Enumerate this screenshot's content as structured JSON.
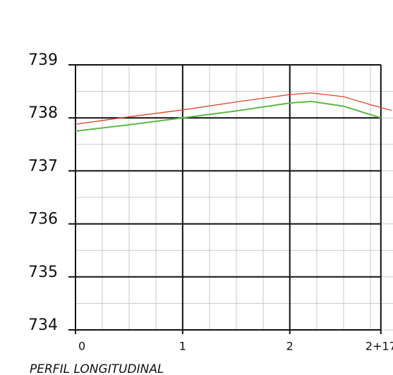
{
  "chart_data": {
    "type": "line",
    "title": "PERFIL LONGITUDINAL",
    "xlim": [
      0,
      2.95
    ],
    "xticks": [
      0,
      1,
      2,
      {
        "value": 2.85,
        "label": "2+17"
      }
    ],
    "ylim": [
      734,
      739
    ],
    "yticks": [
      734,
      735,
      736,
      737,
      738,
      739
    ],
    "grid": true,
    "series": [
      {
        "color": "#d9442a",
        "x": [
          0,
          0.5,
          1,
          1.5,
          2,
          2.2,
          2.5,
          2.75,
          2.95
        ],
        "values": [
          737.88,
          738.02,
          738.15,
          738.3,
          738.44,
          738.47,
          738.4,
          738.25,
          738.14
        ]
      },
      {
        "color": "#5cb848",
        "x": [
          0,
          0.5,
          1,
          1.5,
          2,
          2.2,
          2.5,
          2.85
        ],
        "values": [
          737.75,
          737.87,
          738.0,
          738.13,
          738.28,
          738.31,
          738.22,
          738.0
        ]
      }
    ]
  }
}
